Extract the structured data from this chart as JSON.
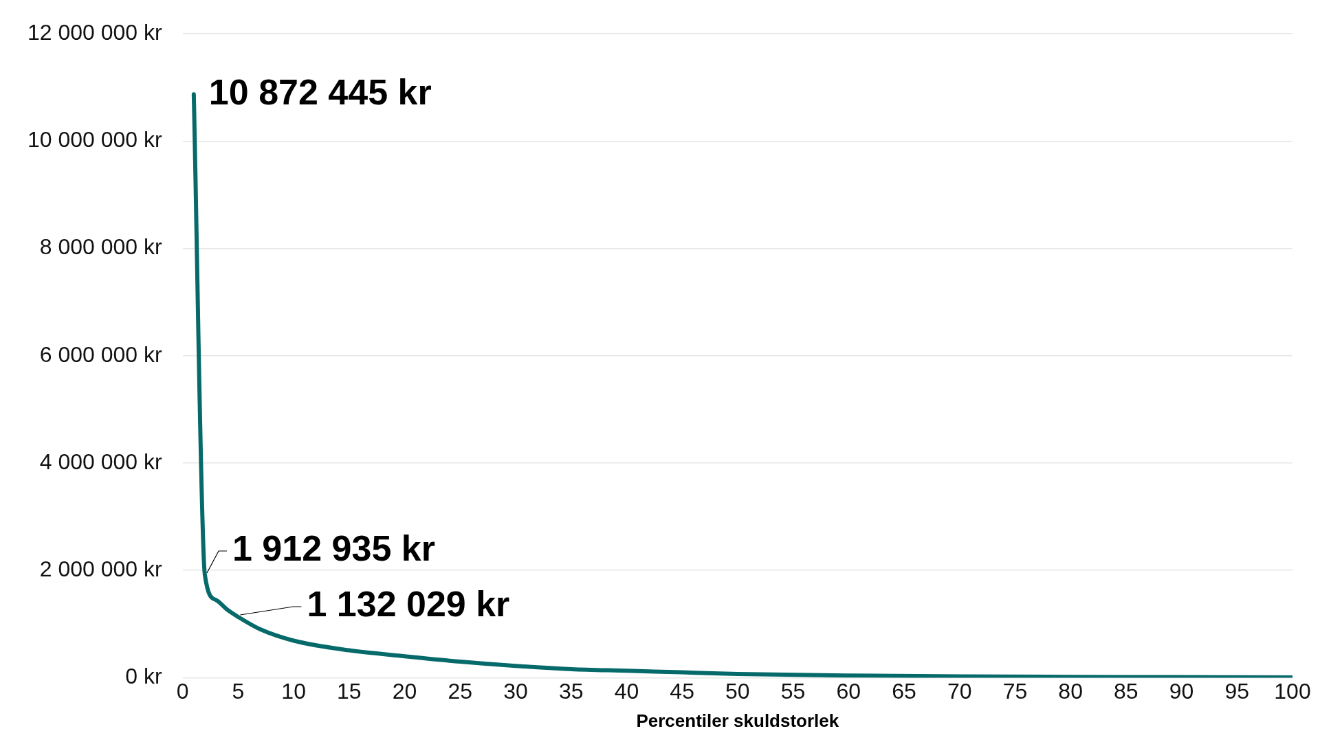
{
  "chart_data": {
    "type": "line",
    "xlabel": "Percentiler skuldstorlek",
    "x": [
      1,
      2,
      3,
      4,
      5,
      7,
      10,
      15,
      20,
      25,
      30,
      35,
      40,
      45,
      50,
      60,
      70,
      80,
      90,
      100
    ],
    "series": [
      {
        "color": "#076a6a",
        "values": [
          10872445,
          1912935,
          1450000,
          1270000,
          1132029,
          900000,
          690000,
          510000,
          400000,
          300000,
          220000,
          160000,
          130000,
          100000,
          70000,
          40000,
          25000,
          15000,
          10000,
          5000
        ]
      }
    ],
    "xlim": [
      0,
      100
    ],
    "xticks": [
      0,
      5,
      10,
      15,
      20,
      25,
      30,
      35,
      40,
      45,
      50,
      55,
      60,
      65,
      70,
      75,
      80,
      85,
      90,
      95,
      100
    ],
    "ylim": [
      0,
      12000000
    ],
    "yticks": [
      {
        "value": 0,
        "label": "0 kr"
      },
      {
        "value": 2000000,
        "label": "2 000 000 kr"
      },
      {
        "value": 4000000,
        "label": "4 000 000 kr"
      },
      {
        "value": 6000000,
        "label": "6 000 000 kr"
      },
      {
        "value": 8000000,
        "label": "8 000 000 kr"
      },
      {
        "value": 10000000,
        "label": "10 000 000 kr"
      },
      {
        "value": 12000000,
        "label": "12 000 000 kr"
      }
    ],
    "grid": "y",
    "legend": false,
    "marker": "none",
    "line_style": "solid",
    "annotations": [
      {
        "text": "10 872 445 kr",
        "x": 1,
        "y": 10872445
      },
      {
        "text": "1 912 935 kr",
        "x": 2,
        "y": 1912935
      },
      {
        "text": "1 132 029 kr",
        "x": 5,
        "y": 1132029
      }
    ]
  }
}
